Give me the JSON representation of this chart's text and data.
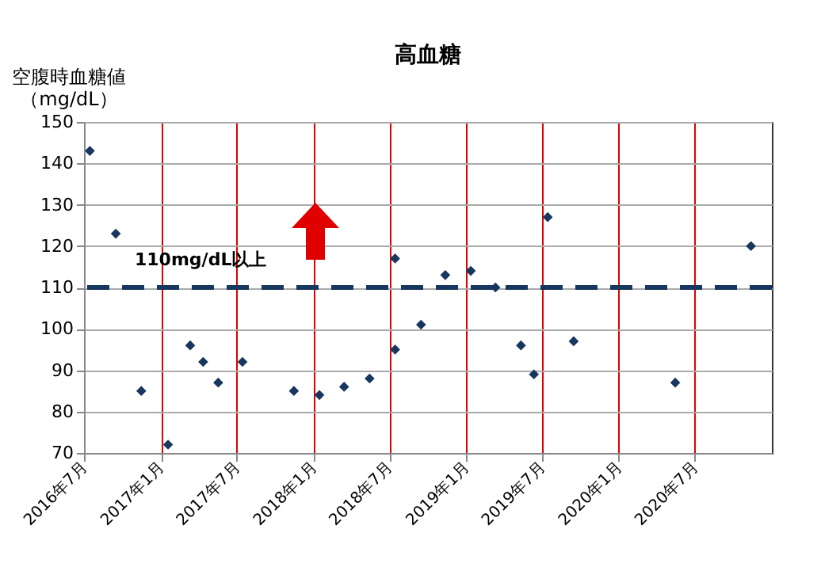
{
  "chart_data": {
    "type": "scatter",
    "title": "高血糖",
    "ylabel": "空腹時血糖値（mg/dL）",
    "x": [
      "2016-07-15",
      "2016-09-15",
      "2016-11-15",
      "2017-01-18",
      "2017-03-12",
      "2017-04-12",
      "2017-05-18",
      "2017-07-15",
      "2017-11-15",
      "2018-01-15",
      "2018-03-15",
      "2018-05-15",
      "2018-07-15",
      "2018-07-15",
      "2018-09-15",
      "2018-11-12",
      "2019-01-12",
      "2019-03-12",
      "2019-05-12",
      "2019-06-12",
      "2019-07-15",
      "2019-09-15",
      "2020-05-15",
      "2020-11-12"
    ],
    "series": [
      {
        "color": "#17375e",
        "values": [
          143,
          123,
          85,
          72,
          96,
          92,
          87,
          92,
          85,
          84,
          86,
          88,
          117,
          95,
          101,
          113,
          114,
          110,
          96,
          89,
          127,
          97,
          87,
          120
        ]
      }
    ],
    "xlim": [
      "2016-07-01",
      "2021-01-01"
    ],
    "xticks": [
      {
        "value": "2016-07-01",
        "label": "2016年7月"
      },
      {
        "value": "2017-01-01",
        "label": "2017年1月"
      },
      {
        "value": "2017-07-01",
        "label": "2017年7月"
      },
      {
        "value": "2018-01-01",
        "label": "2018年1月"
      },
      {
        "value": "2018-07-01",
        "label": "2018年7月"
      },
      {
        "value": "2019-01-01",
        "label": "2019年1月"
      },
      {
        "value": "2019-07-01",
        "label": "2019年7月"
      },
      {
        "value": "2020-01-01",
        "label": "2020年1月"
      },
      {
        "value": "2020-07-01",
        "label": "2020年7月"
      }
    ],
    "ylim": [
      70,
      150
    ],
    "yticks": [
      70,
      80,
      90,
      100,
      110,
      120,
      130,
      140,
      150
    ],
    "ref_lines": [
      {
        "axis": "y",
        "value": 110,
        "label": "110mg/dL以上",
        "color": "#17375e",
        "line_style": "dashed"
      }
    ],
    "grid": true,
    "marker": "diamond"
  }
}
